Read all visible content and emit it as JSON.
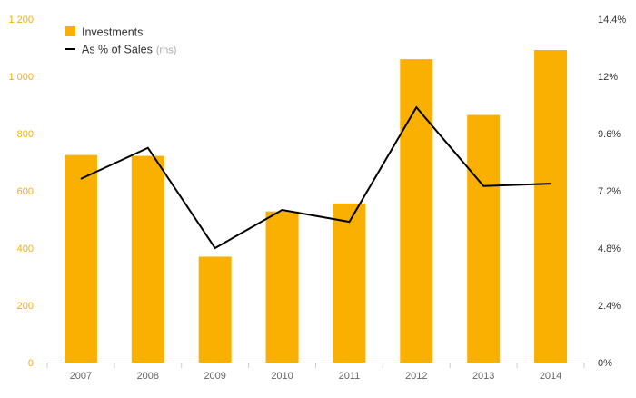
{
  "chart_data": {
    "type": "bar",
    "title": "",
    "xlabel": "",
    "ylabel": "",
    "categories": [
      "2007",
      "2008",
      "2009",
      "2010",
      "2011",
      "2012",
      "2013",
      "2014"
    ],
    "series": [
      {
        "name": "Investments",
        "type": "bar",
        "axis": "left",
        "values": [
          725,
          722,
          370,
          528,
          556,
          1060,
          865,
          1092
        ]
      },
      {
        "name": "As % of Sales",
        "name_suffix": "(rhs)",
        "type": "line",
        "axis": "right",
        "values": [
          7.7,
          9.0,
          4.8,
          6.4,
          5.9,
          10.7,
          7.4,
          7.5
        ]
      }
    ],
    "left_axis": {
      "ylim": [
        0,
        1200
      ],
      "ticks": [
        0,
        200,
        400,
        600,
        800,
        1000,
        1200
      ],
      "tick_labels": [
        "0",
        "200",
        "400",
        "600",
        "800",
        "1 000",
        "1 200"
      ]
    },
    "right_axis": {
      "ylim": [
        0,
        14.4
      ],
      "ticks": [
        0,
        2.4,
        4.8,
        7.2,
        9.6,
        12,
        14.4
      ],
      "tick_labels": [
        "0%",
        "2.4%",
        "4.8%",
        "7.2%",
        "9.6%",
        "12%",
        "14.4%"
      ]
    },
    "legend_position": "top-left",
    "grid": false,
    "colors": {
      "bar": "#F9B000",
      "line": "#000000",
      "left_tick_text": "#F9B000",
      "right_tick_text": "#333333",
      "x_tick_text": "#666666",
      "suffix_text": "#aaaaaa",
      "axis_line": "#cccccc"
    }
  }
}
